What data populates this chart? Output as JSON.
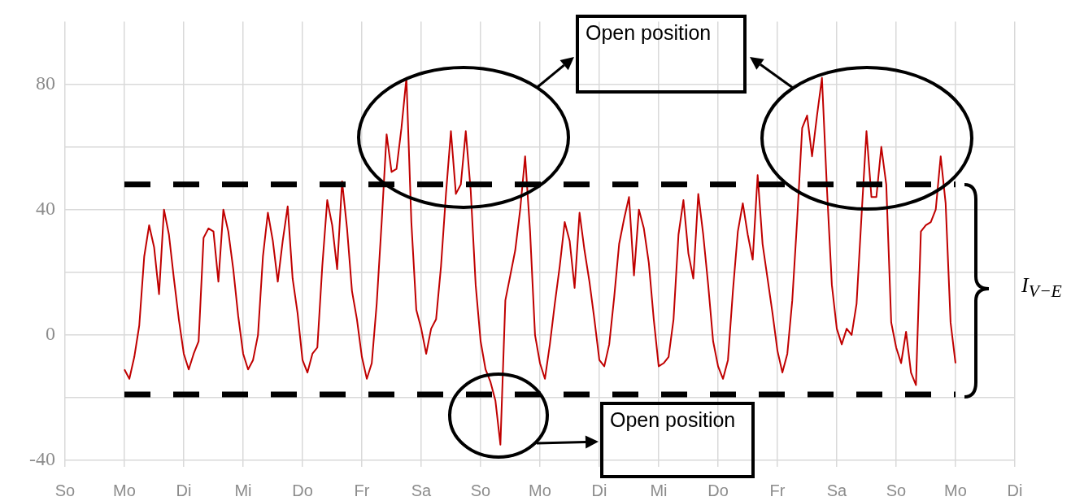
{
  "chart_data": {
    "type": "line",
    "ylim": [
      -40,
      100
    ],
    "categories": [
      "So",
      null,
      null,
      null,
      null,
      null,
      null,
      null,
      null,
      null,
      null,
      null,
      "Mo",
      null,
      null,
      null,
      null,
      null,
      null,
      null,
      null,
      null,
      null,
      null,
      "Di",
      null,
      null,
      null,
      null,
      null,
      null,
      null,
      null,
      null,
      null,
      null,
      "Mi",
      null,
      null,
      null,
      null,
      null,
      null,
      null,
      null,
      null,
      null,
      null,
      "Do",
      null,
      null,
      null,
      null,
      null,
      null,
      null,
      null,
      null,
      null,
      null,
      "Fr",
      null,
      null,
      null,
      null,
      null,
      null,
      null,
      null,
      null,
      null,
      null,
      "Sa",
      null,
      null,
      null,
      null,
      null,
      null,
      null,
      null,
      null,
      null,
      null,
      "So",
      null,
      null,
      null,
      null,
      null,
      null,
      null,
      null,
      null,
      null,
      null,
      "Mo",
      null,
      null,
      null,
      null,
      null,
      null,
      null,
      null,
      null,
      null,
      null,
      "Di",
      null,
      null,
      null,
      null,
      null,
      null,
      null,
      null,
      null,
      null,
      null,
      "Mi",
      null,
      null,
      null,
      null,
      null,
      null,
      null,
      null,
      null,
      null,
      null,
      "Do",
      null,
      null,
      null,
      null,
      null,
      null,
      null,
      null,
      null,
      null,
      null,
      "Fr",
      null,
      null,
      null,
      null,
      null,
      null,
      null,
      null,
      null,
      null,
      null,
      "Sa",
      null,
      null,
      null,
      null,
      null,
      null,
      null,
      null,
      null,
      null,
      null,
      "So",
      null,
      null,
      null,
      null,
      null,
      null,
      null,
      null,
      null,
      null,
      null,
      "Mo",
      null,
      null,
      null,
      null,
      null,
      null,
      null,
      null,
      null,
      null,
      null,
      "Di"
    ],
    "yticks": [
      -40,
      {
        "value": -20,
        "label": null
      },
      0,
      {
        "value": 20,
        "label": null
      },
      40,
      {
        "value": 60,
        "label": null
      },
      80
    ],
    "grid": true,
    "legend": false,
    "marker": "none",
    "series": [
      {
        "color": "#c00000",
        "line_style": "solid",
        "values": [
          null,
          null,
          null,
          null,
          null,
          null,
          null,
          null,
          null,
          null,
          null,
          null,
          -11,
          -14,
          -7,
          3,
          25,
          35,
          28,
          13,
          40,
          32,
          18,
          5,
          -6,
          -11,
          -6,
          -2,
          31,
          34,
          33,
          17,
          40,
          33,
          21,
          6,
          -6,
          -11,
          -8,
          0,
          25,
          39,
          30,
          17,
          30,
          41,
          18,
          7,
          -8,
          -12,
          -6,
          -4,
          22,
          43,
          35,
          21,
          49,
          34,
          14,
          5,
          -7,
          -14,
          -9,
          10,
          36,
          64,
          52,
          53,
          66,
          82,
          36,
          8,
          2,
          -6,
          2,
          5,
          22,
          45,
          65,
          45,
          48,
          65,
          46,
          16,
          -2,
          -11,
          -15,
          -21,
          -35,
          11,
          19,
          27,
          40,
          57,
          33,
          0,
          -9,
          -14,
          -3,
          10,
          22,
          36,
          30,
          15,
          39,
          27,
          17,
          5,
          -8,
          -10,
          -3,
          12,
          29,
          37,
          44,
          19,
          40,
          34,
          23,
          5,
          -10,
          -9,
          -7,
          5,
          32,
          43,
          26,
          18,
          45,
          32,
          16,
          -2,
          -10,
          -14,
          -8,
          14,
          33,
          42,
          32,
          24,
          51,
          29,
          18,
          7,
          -5,
          -12,
          -6,
          11,
          37,
          66,
          70,
          57,
          70,
          82,
          47,
          16,
          2,
          -3,
          2,
          0,
          10,
          38,
          65,
          44,
          44,
          60,
          48,
          4,
          -4,
          -9,
          1,
          -12,
          -16,
          33,
          35,
          36,
          40,
          57,
          42,
          4,
          -9,
          null,
          null,
          null,
          null,
          null,
          null,
          null,
          null,
          null,
          null,
          null,
          null
        ]
      }
    ],
    "ref_lines": [
      {
        "axis": "y",
        "value": 48,
        "color": "#000000",
        "line_style": "dashed"
      },
      {
        "axis": "y",
        "value": -19,
        "color": "#000000",
        "line_style": "dashed"
      }
    ],
    "annotations": [
      "Open position",
      "Open position",
      "I$_{V−E}$"
    ]
  }
}
